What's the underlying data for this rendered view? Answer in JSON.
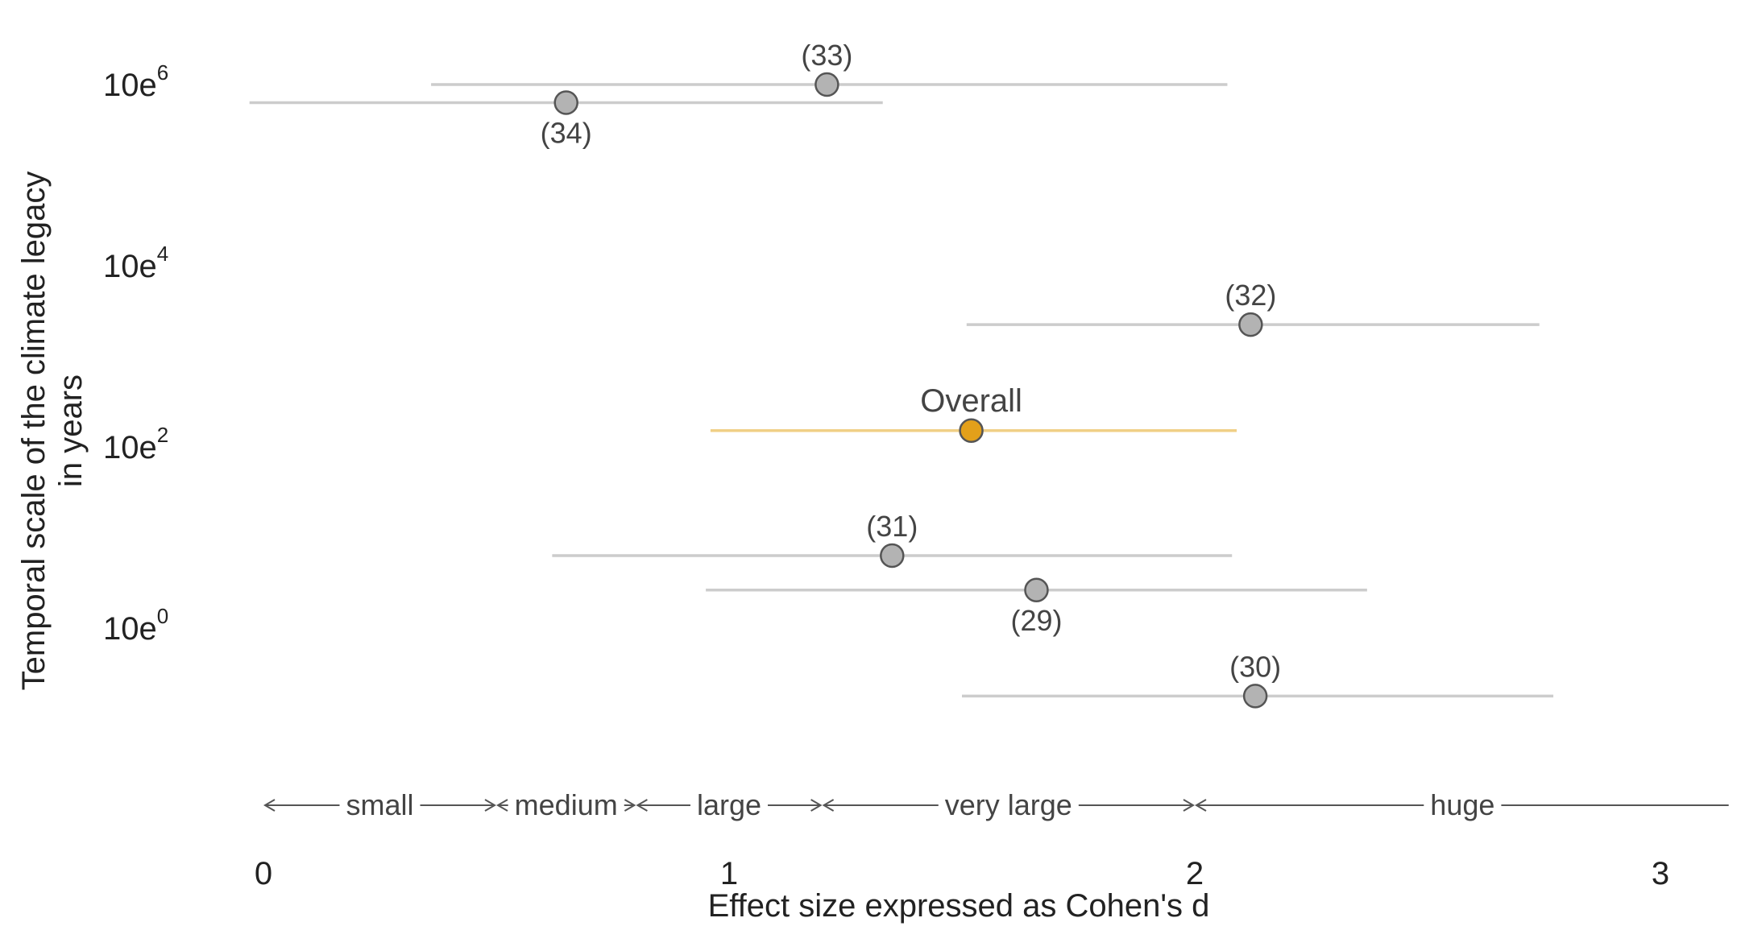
{
  "chart_data": {
    "type": "forest",
    "xlabel": "Effect size expressed as Cohen's d",
    "ylabel_lines": [
      "Temporal scale of the climate legacy",
      "in years"
    ],
    "xlim": [
      0,
      3.15
    ],
    "xticks": [
      {
        "value": 0,
        "label": "0"
      },
      {
        "value": 1,
        "label": "1"
      },
      {
        "value": 2,
        "label": "2"
      },
      {
        "value": 3,
        "label": "3"
      }
    ],
    "ylim": [
      -1.5,
      7
    ],
    "yscale": "log10 (years)",
    "yticks": [
      {
        "value": 0,
        "base": "10e",
        "exp": "0"
      },
      {
        "value": 2,
        "base": "10e",
        "exp": "2"
      },
      {
        "value": 4,
        "base": "10e",
        "exp": "4"
      },
      {
        "value": 6,
        "base": "10e",
        "exp": "6"
      }
    ],
    "series": [
      {
        "label": "(33)",
        "d": 1.21,
        "ci_low": 0.36,
        "ci_high": 2.07,
        "y": 6.0,
        "label_pos": "above",
        "highlight": false
      },
      {
        "label": "(34)",
        "d": 0.65,
        "ci_low": -0.03,
        "ci_high": 1.33,
        "y": 5.8,
        "label_pos": "below",
        "highlight": false
      },
      {
        "label": "(32)",
        "d": 2.12,
        "ci_low": 1.51,
        "ci_high": 2.74,
        "y": 3.35,
        "label_pos": "above",
        "highlight": false
      },
      {
        "label": "Overall",
        "d": 1.52,
        "ci_low": 0.96,
        "ci_high": 2.09,
        "y": 2.18,
        "label_pos": "above",
        "highlight": true
      },
      {
        "label": "(31)",
        "d": 1.35,
        "ci_low": 0.62,
        "ci_high": 2.08,
        "y": 0.8,
        "label_pos": "above",
        "highlight": false
      },
      {
        "label": "(29)",
        "d": 1.66,
        "ci_low": 0.95,
        "ci_high": 2.37,
        "y": 0.42,
        "label_pos": "below",
        "highlight": false
      },
      {
        "label": "(30)",
        "d": 2.13,
        "ci_low": 1.5,
        "ci_high": 2.77,
        "y": -0.75,
        "label_pos": "above",
        "highlight": false
      }
    ],
    "effect_categories": [
      {
        "label": "small",
        "from": 0,
        "to": 0.5
      },
      {
        "label": "medium",
        "from": 0.5,
        "to": 0.8
      },
      {
        "label": "large",
        "from": 0.8,
        "to": 1.2
      },
      {
        "label": "very large",
        "from": 1.2,
        "to": 2.0
      },
      {
        "label": "huge",
        "from": 2.0,
        "to": 3.15
      }
    ],
    "colors": {
      "point_fill": "#b3b3b3",
      "point_stroke": "#555555",
      "ci_line": "#cccccc",
      "highlight": "#e3a01a",
      "highlight_ci": "#f0cf86",
      "category_arrows": "#555555"
    }
  }
}
